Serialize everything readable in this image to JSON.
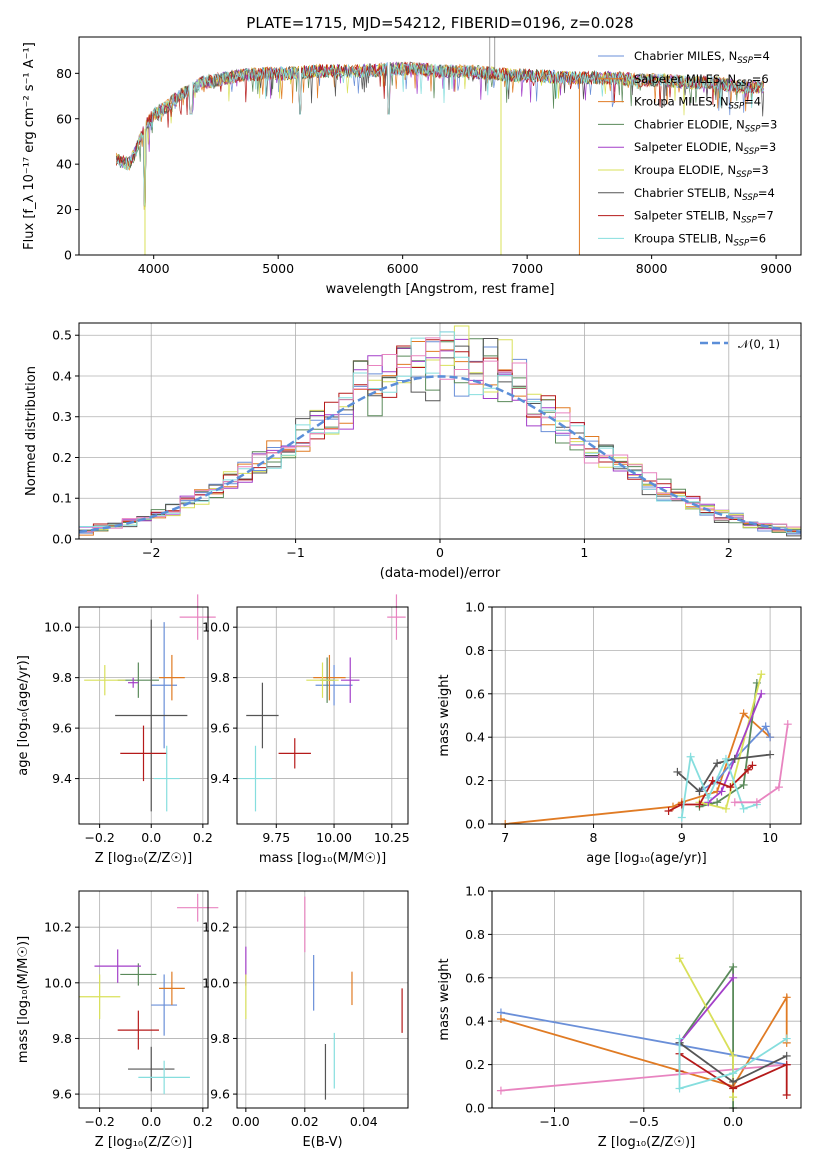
{
  "figure_title": "PLATE=1715, MJD=54212, FIBERID=0196, z=0.028",
  "colors": {
    "chabrier_miles": "#6a8fd8",
    "salpeter_miles": "#e07b24",
    "kroupa_miles": "#e07b24",
    "chabrier_elodie": "#5a8a5a",
    "salpeter_elodie": "#a33fc9",
    "kroupa_elodie": "#d9e05a",
    "chabrier_stelib": "#555555",
    "salpeter_stelib": "#b51a1a",
    "kroupa_stelib": "#86dede",
    "extra_pink": "#e884c0",
    "normal_dashed": "#5b8ed8"
  },
  "chart_data": [
    {
      "type": "line",
      "title": "PLATE=1715, MJD=54212, FIBERID=0196, z=0.028",
      "xlabel": "wavelength [Angstrom, rest frame]",
      "ylabel": "Flux [f_λ 10⁻¹⁷ erg cm⁻² s⁻¹ A⁻¹]",
      "xlim": [
        3400,
        9200
      ],
      "ylim": [
        0,
        96
      ],
      "xticks": [
        "4000",
        "5000",
        "6000",
        "7000",
        "8000",
        "9000"
      ],
      "yticks": [
        "0",
        "20",
        "40",
        "60",
        "80"
      ],
      "grid": false,
      "legend_position": "top-right",
      "legend": [
        {
          "label": "Chabrier MILES, N",
          "sub": "SSP",
          "suffix": "=4"
        },
        {
          "label": "Salpeter MILES, N",
          "sub": "SSP",
          "suffix": "=6"
        },
        {
          "label": "Kroupa MILES, N",
          "sub": "SSP",
          "suffix": "=4"
        },
        {
          "label": "Chabrier ELODIE, N",
          "sub": "SSP",
          "suffix": "=3"
        },
        {
          "label": "Salpeter ELODIE, N",
          "sub": "SSP",
          "suffix": "=3"
        },
        {
          "label": "Kroupa ELODIE, N",
          "sub": "SSP",
          "suffix": "=3"
        },
        {
          "label": "Chabrier STELIB, N",
          "sub": "SSP",
          "suffix": "=4"
        },
        {
          "label": "Salpeter STELIB, N",
          "sub": "SSP",
          "suffix": "=7"
        },
        {
          "label": "Kroupa STELIB, N",
          "sub": "SSP",
          "suffix": "=6"
        }
      ],
      "envelope": {
        "x": [
          3700,
          3800,
          3850,
          3900,
          3950,
          4000,
          4100,
          4200,
          4300,
          4400,
          4500,
          4700,
          4900,
          5100,
          5300,
          5500,
          5700,
          5900,
          6100,
          6300,
          6500,
          6700,
          6900,
          7100,
          7300,
          7500,
          7700,
          7900,
          8100,
          8300,
          8500,
          8700,
          8900
        ],
        "y": [
          42,
          40,
          45,
          52,
          58,
          62,
          65,
          70,
          73,
          76,
          77,
          79,
          80,
          80,
          81,
          81,
          81,
          82,
          82,
          81,
          81,
          80,
          79,
          79,
          78,
          78,
          78,
          77,
          77,
          76,
          76,
          74,
          74
        ]
      },
      "drops": [
        {
          "x": 3930,
          "y": 0
        },
        {
          "x": 6790,
          "y": 0
        },
        {
          "x": 7420,
          "y": 0
        }
      ]
    },
    {
      "type": "bar",
      "subtype": "step-histogram",
      "xlabel": "(data-model)/error",
      "ylabel": "Normed distribution",
      "xlim": [
        -2.5,
        2.5
      ],
      "ylim": [
        0,
        0.53
      ],
      "xticks": [
        "−2",
        "−1",
        "0",
        "1",
        "2"
      ],
      "yticks": [
        "0.0",
        "0.1",
        "0.2",
        "0.3",
        "0.4",
        "0.5"
      ],
      "grid": true,
      "legend_position": "top-right",
      "legend": [
        {
          "label": "𝒩(0, 1)"
        }
      ],
      "bin_width": 0.1
    },
    {
      "type": "scatter",
      "subtype": "errorbar",
      "xlabel": "Z [log₁₀(Z/Z☉)]",
      "ylabel": "age  [log₁₀(age/yr)]",
      "xlim": [
        -0.28,
        0.22
      ],
      "ylim": [
        9.22,
        10.08
      ],
      "xticks": [
        "−0.2",
        "0.0",
        "0.2"
      ],
      "yticks": [
        "9.4",
        "9.6",
        "9.8",
        "10.0"
      ],
      "grid": true,
      "points": [
        {
          "series": "chabrier_miles",
          "x": 0.05,
          "y": 9.77,
          "xerr": 0.05,
          "yerr": 0.25
        },
        {
          "series": "salpeter_miles",
          "x": 0.08,
          "y": 9.8,
          "xerr": 0.05,
          "yerr": 0.09
        },
        {
          "series": "chabrier_elodie",
          "x": -0.05,
          "y": 9.79,
          "xerr": 0.08,
          "yerr": 0.07
        },
        {
          "series": "salpeter_elodie",
          "x": -0.07,
          "y": 9.78,
          "xerr": 0.02,
          "yerr": 0.02
        },
        {
          "series": "kroupa_elodie",
          "x": -0.18,
          "y": 9.79,
          "xerr": 0.08,
          "yerr": 0.06
        },
        {
          "series": "chabrier_stelib",
          "x": 0.0,
          "y": 9.65,
          "xerr": 0.14,
          "yerr": 0.38
        },
        {
          "series": "salpeter_stelib",
          "x": -0.03,
          "y": 9.5,
          "xerr": 0.09,
          "yerr": 0.11
        },
        {
          "series": "kroupa_stelib",
          "x": 0.06,
          "y": 9.4,
          "xerr": 0.05,
          "yerr": 0.13
        },
        {
          "series": "extra_pink",
          "x": 0.18,
          "y": 10.04,
          "xerr": 0.07,
          "yerr": 0.09
        }
      ]
    },
    {
      "type": "scatter",
      "subtype": "errorbar",
      "xlabel": "mass [log₁₀(M/M☉)]",
      "ylabel": "",
      "xlim": [
        9.58,
        10.32
      ],
      "ylim": [
        9.22,
        10.08
      ],
      "xticks": [
        "9.75",
        "10.00",
        "10.25"
      ],
      "yticks": [
        "9.4",
        "9.6",
        "9.8",
        "10.0"
      ],
      "grid": true,
      "points": [
        {
          "series": "chabrier_miles",
          "x": 10.0,
          "y": 9.77,
          "xerr": 0.08,
          "yerr": 0.08
        },
        {
          "series": "salpeter_miles",
          "x": 9.98,
          "y": 9.8,
          "xerr": 0.07,
          "yerr": 0.09
        },
        {
          "series": "chabrier_elodie",
          "x": 9.97,
          "y": 9.79,
          "xerr": 0.03,
          "yerr": 0.09
        },
        {
          "series": "salpeter_elodie",
          "x": 10.07,
          "y": 9.79,
          "xerr": 0.04,
          "yerr": 0.09
        },
        {
          "series": "kroupa_elodie",
          "x": 9.95,
          "y": 9.79,
          "xerr": 0.07,
          "yerr": 0.07
        },
        {
          "series": "chabrier_stelib",
          "x": 9.69,
          "y": 9.65,
          "xerr": 0.07,
          "yerr": 0.13
        },
        {
          "series": "salpeter_stelib",
          "x": 9.83,
          "y": 9.5,
          "xerr": 0.07,
          "yerr": 0.06
        },
        {
          "series": "kroupa_stelib",
          "x": 9.66,
          "y": 9.4,
          "xerr": 0.07,
          "yerr": 0.13
        },
        {
          "series": "extra_pink",
          "x": 10.27,
          "y": 10.04,
          "xerr": 0.04,
          "yerr": 0.09
        }
      ]
    },
    {
      "type": "line",
      "xlabel": "age  [log₁₀(age/yr)]",
      "ylabel": "mass weight",
      "xlim": [
        6.85,
        10.35
      ],
      "ylim": [
        0,
        1.0
      ],
      "xticks": [
        "7",
        "8",
        "9",
        "10"
      ],
      "yticks": [
        "0.0",
        "0.2",
        "0.4",
        "0.6",
        "0.8",
        "1.0"
      ],
      "grid": true,
      "series": [
        {
          "key": "salpeter_miles",
          "x": [
            7.0,
            8.9,
            9.0,
            9.4,
            9.7,
            10.0
          ],
          "y": [
            0.0,
            0.08,
            0.1,
            0.15,
            0.51,
            0.4
          ]
        },
        {
          "key": "chabrier_miles",
          "x": [
            9.2,
            9.4,
            9.6,
            9.95,
            10.0
          ],
          "y": [
            0.15,
            0.2,
            0.3,
            0.45,
            0.4
          ]
        },
        {
          "key": "chabrier_elodie",
          "x": [
            9.2,
            9.4,
            9.7,
            9.85
          ],
          "y": [
            0.08,
            0.1,
            0.18,
            0.65
          ]
        },
        {
          "key": "kroupa_elodie",
          "x": [
            9.2,
            9.5,
            9.9
          ],
          "y": [
            0.1,
            0.07,
            0.69
          ]
        },
        {
          "key": "salpeter_elodie",
          "x": [
            9.3,
            9.45,
            9.9
          ],
          "y": [
            0.1,
            0.15,
            0.6
          ]
        },
        {
          "key": "chabrier_stelib",
          "x": [
            8.95,
            9.2,
            9.4,
            9.6,
            10.0
          ],
          "y": [
            0.24,
            0.15,
            0.28,
            0.3,
            0.32
          ]
        },
        {
          "key": "salpeter_stelib",
          "x": [
            8.85,
            9.0,
            9.2,
            9.35,
            9.55,
            9.75,
            9.8
          ],
          "y": [
            0.06,
            0.09,
            0.09,
            0.2,
            0.17,
            0.25,
            0.27
          ]
        },
        {
          "key": "kroupa_stelib",
          "x": [
            9.0,
            9.1,
            9.3,
            9.5,
            9.7,
            9.85
          ],
          "y": [
            0.03,
            0.31,
            0.12,
            0.3,
            0.07,
            0.09
          ]
        },
        {
          "key": "extra_pink",
          "x": [
            9.6,
            9.85,
            10.1,
            10.2
          ],
          "y": [
            0.1,
            0.1,
            0.17,
            0.46
          ]
        }
      ]
    },
    {
      "type": "scatter",
      "subtype": "errorbar",
      "xlabel": "Z [log₁₀(Z/Z☉)]",
      "ylabel": "mass [log₁₀(M/M☉)]",
      "xlim": [
        -0.28,
        0.22
      ],
      "ylim": [
        9.55,
        10.33
      ],
      "xticks": [
        "−0.2",
        "0.0",
        "0.2"
      ],
      "yticks": [
        "9.6",
        "9.8",
        "10.0",
        "10.2"
      ],
      "grid": true,
      "points": [
        {
          "series": "chabrier_miles",
          "x": 0.05,
          "y": 9.92,
          "xerr": 0.05,
          "yerr": 0.11
        },
        {
          "series": "salpeter_miles",
          "x": 0.08,
          "y": 9.98,
          "xerr": 0.05,
          "yerr": 0.06
        },
        {
          "series": "chabrier_elodie",
          "x": -0.05,
          "y": 10.03,
          "xerr": 0.07,
          "yerr": 0.04
        },
        {
          "series": "salpeter_elodie",
          "x": -0.13,
          "y": 10.06,
          "xerr": 0.09,
          "yerr": 0.06
        },
        {
          "series": "kroupa_elodie",
          "x": -0.2,
          "y": 9.95,
          "xerr": 0.08,
          "yerr": 0.08
        },
        {
          "series": "chabrier_stelib",
          "x": 0.0,
          "y": 9.69,
          "xerr": 0.09,
          "yerr": 0.08
        },
        {
          "series": "salpeter_stelib",
          "x": -0.05,
          "y": 9.83,
          "xerr": 0.08,
          "yerr": 0.07
        },
        {
          "series": "kroupa_stelib",
          "x": 0.05,
          "y": 9.66,
          "xerr": 0.1,
          "yerr": 0.06
        },
        {
          "series": "extra_pink",
          "x": 0.18,
          "y": 10.27,
          "xerr": 0.08,
          "yerr": 0.05
        }
      ]
    },
    {
      "type": "scatter",
      "subtype": "errorbar",
      "xlabel": "E(B-V)",
      "ylabel": "",
      "xlim": [
        -0.003,
        0.055
      ],
      "ylim": [
        9.55,
        10.33
      ],
      "xticks": [
        "0.00",
        "0.02",
        "0.04"
      ],
      "yticks": [
        "9.6",
        "9.8",
        "10.0",
        "10.2"
      ],
      "grid": true,
      "points": [
        {
          "series": "chabrier_miles",
          "x": 0.023,
          "y": 10.0,
          "xerr": 0.0,
          "yerr": 0.1
        },
        {
          "series": "salpeter_miles",
          "x": 0.036,
          "y": 9.98,
          "xerr": 0.0,
          "yerr": 0.06
        },
        {
          "series": "salpeter_elodie",
          "x": 0.0,
          "y": 10.06,
          "xerr": 0.0,
          "yerr": 0.07
        },
        {
          "series": "kroupa_elodie",
          "x": 0.0,
          "y": 9.95,
          "xerr": 0.0,
          "yerr": 0.08
        },
        {
          "series": "chabrier_stelib",
          "x": 0.027,
          "y": 9.68,
          "xerr": 0.0,
          "yerr": 0.1
        },
        {
          "series": "salpeter_stelib",
          "x": 0.053,
          "y": 9.9,
          "xerr": 0.0,
          "yerr": 0.08
        },
        {
          "series": "kroupa_stelib",
          "x": 0.03,
          "y": 9.72,
          "xerr": 0.0,
          "yerr": 0.1
        },
        {
          "series": "extra_pink",
          "x": 0.02,
          "y": 10.21,
          "xerr": 0.0,
          "yerr": 0.1
        }
      ]
    },
    {
      "type": "line",
      "xlabel": "Z [log₁₀(Z/Z☉)]",
      "ylabel": "mass weight",
      "xlim": [
        -1.35,
        0.38
      ],
      "ylim": [
        0,
        1.0
      ],
      "xticks": [
        "−1.0",
        "−0.5",
        "0.0"
      ],
      "yticks": [
        "0.0",
        "0.2",
        "0.4",
        "0.6",
        "0.8",
        "1.0"
      ],
      "grid": true,
      "series": [
        {
          "key": "chabrier_miles",
          "x": [
            -1.3,
            0.3
          ],
          "y": [
            0.44,
            0.2
          ]
        },
        {
          "key": "salpeter_miles",
          "x": [
            -1.3,
            0.0,
            0.3,
            0.3
          ],
          "y": [
            0.41,
            0.1,
            0.51,
            0.3
          ]
        },
        {
          "key": "extra_pink",
          "x": [
            -1.3,
            0.3
          ],
          "y": [
            0.08,
            0.2
          ]
        },
        {
          "key": "chabrier_elodie",
          "x": [
            -0.3,
            0.0,
            0.0
          ],
          "y": [
            0.3,
            0.65,
            0.0
          ]
        },
        {
          "key": "kroupa_elodie",
          "x": [
            -0.3,
            0.0,
            0.0
          ],
          "y": [
            0.69,
            0.24,
            0.05
          ]
        },
        {
          "key": "salpeter_elodie",
          "x": [
            -0.3,
            0.0
          ],
          "y": [
            0.3,
            0.6
          ]
        },
        {
          "key": "chabrier_stelib",
          "x": [
            -0.3,
            0.0,
            0.3
          ],
          "y": [
            0.3,
            0.12,
            0.24
          ]
        },
        {
          "key": "salpeter_stelib",
          "x": [
            -0.3,
            -0.3,
            0.0,
            0.3,
            0.3
          ],
          "y": [
            0.17,
            0.25,
            0.09,
            0.2,
            0.06
          ]
        },
        {
          "key": "kroupa_stelib",
          "x": [
            -0.3,
            -0.3,
            0.0,
            0.3
          ],
          "y": [
            0.32,
            0.09,
            0.16,
            0.32
          ]
        }
      ]
    }
  ]
}
